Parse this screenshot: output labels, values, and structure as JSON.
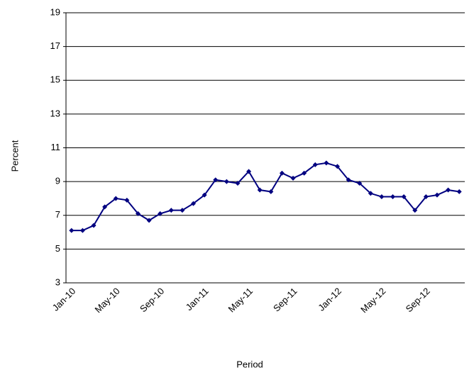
{
  "chart_data": {
    "type": "line",
    "x_label": "Period",
    "y_label": "Percent",
    "categories": [
      "Jan-10",
      null,
      null,
      null,
      "May-10",
      null,
      null,
      null,
      "Sep-10",
      null,
      null,
      null,
      "Jan-11",
      null,
      null,
      null,
      "May-11",
      null,
      null,
      null,
      "Sep-11",
      null,
      null,
      null,
      "Jan-12",
      null,
      null,
      null,
      "May-12",
      null,
      null,
      null,
      "Sep-12",
      null,
      null,
      null
    ],
    "series": [
      {
        "name": "Percent",
        "color": "#000080",
        "values": [
          6.1,
          6.1,
          6.4,
          7.5,
          8.0,
          7.9,
          7.1,
          6.7,
          7.1,
          7.3,
          7.3,
          7.7,
          8.2,
          9.1,
          9.0,
          8.9,
          9.6,
          8.5,
          8.4,
          9.5,
          9.2,
          9.5,
          10.0,
          10.1,
          9.9,
          9.1,
          8.9,
          8.3,
          8.1,
          8.1,
          8.1,
          7.3,
          8.1,
          8.2,
          8.5,
          8.4
        ]
      }
    ],
    "ylim": [
      3,
      19
    ],
    "yticks": [
      3,
      5,
      7,
      9,
      11,
      13,
      15,
      17,
      19
    ],
    "grid": true
  }
}
